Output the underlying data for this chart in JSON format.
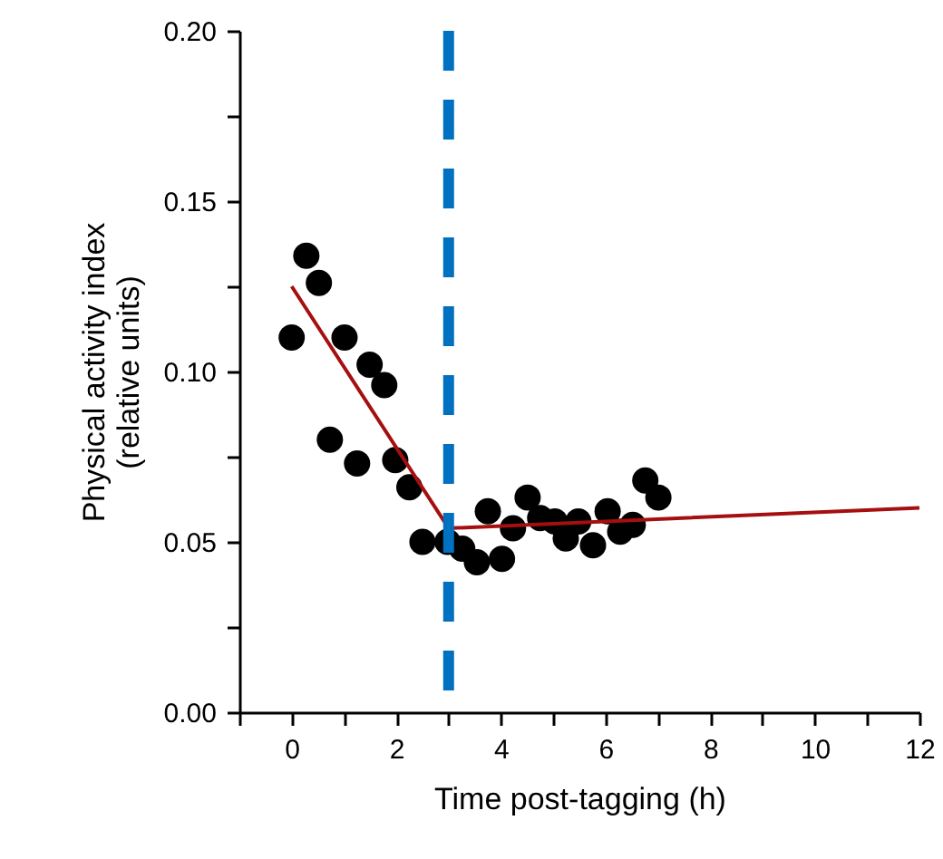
{
  "chart_data": {
    "type": "scatter",
    "xlabel": "Time post-tagging (h)",
    "ylabel": "Physical activity index\n(relative units)",
    "xlim": [
      -1,
      12
    ],
    "ylim": [
      0,
      0.2
    ],
    "xticks": [
      {
        "value": -1,
        "label": null
      },
      0,
      {
        "value": 1,
        "label": null
      },
      2,
      {
        "value": 3,
        "label": null
      },
      4,
      {
        "value": 5,
        "label": null
      },
      6,
      {
        "value": 7,
        "label": null
      },
      8,
      {
        "value": 9,
        "label": null
      },
      10,
      {
        "value": 11,
        "label": null
      },
      12
    ],
    "yticks": [
      {
        "value": 0,
        "label": "0.00"
      },
      {
        "value": 0.025,
        "label": null
      },
      {
        "value": 0.05,
        "label": "0.05"
      },
      {
        "value": 0.075,
        "label": null
      },
      {
        "value": 0.1,
        "label": "0.10"
      },
      {
        "value": 0.125,
        "label": null
      },
      {
        "value": 0.15,
        "label": "0.15"
      },
      {
        "value": 0.175,
        "label": null
      },
      {
        "value": 0.2,
        "label": "0.20"
      }
    ],
    "grid": false,
    "marker": "circle",
    "series": [
      {
        "type": "scatter",
        "color": "#000000",
        "x": [
          0,
          0.28,
          0.52,
          0.73,
          1.01,
          1.25,
          1.49,
          1.77,
          1.98,
          2.25,
          2.5,
          2.98,
          3.26,
          3.54,
          3.75,
          4.02,
          4.23,
          4.51,
          4.75,
          5.03,
          5.24,
          5.48,
          5.76,
          6.04,
          6.28,
          6.52,
          6.76,
          7.01
        ],
        "values": [
          0.11,
          0.134,
          0.126,
          0.08,
          0.11,
          0.073,
          0.102,
          0.096,
          0.074,
          0.066,
          0.05,
          0.05,
          0.048,
          0.044,
          0.059,
          0.045,
          0.054,
          0.063,
          0.057,
          0.056,
          0.051,
          0.056,
          0.049,
          0.059,
          0.053,
          0.055,
          0.068,
          0.063
        ]
      },
      {
        "type": "line",
        "color": "#a50f0f",
        "marker": "none",
        "line_style": "solid",
        "x": [
          0,
          3,
          12
        ],
        "values": [
          0.125,
          0.054,
          0.06
        ]
      }
    ],
    "ref_lines": [
      {
        "axis": "x",
        "value": 3,
        "label": null,
        "color": "#0070c0",
        "line_style": "dashed"
      }
    ]
  }
}
